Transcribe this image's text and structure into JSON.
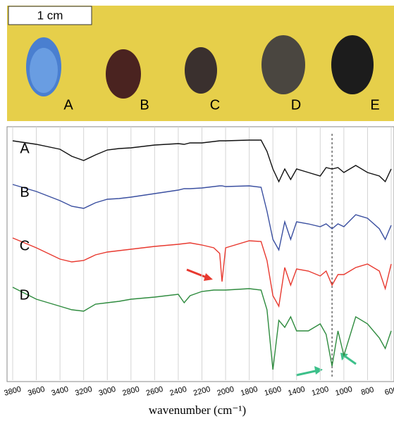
{
  "photo": {
    "scale_label": "1 cm",
    "labels": [
      "A",
      "B",
      "C",
      "D",
      "E"
    ]
  },
  "chart_data": {
    "type": "line",
    "x_label": "wavenumber (cm⁻¹)",
    "x": [
      3800,
      3600,
      3400,
      3300,
      3200,
      3100,
      3000,
      2900,
      2800,
      2600,
      2400,
      2350,
      2300,
      2200,
      2100,
      2050,
      2030,
      2000,
      1800,
      1700,
      1650,
      1600,
      1550,
      1500,
      1450,
      1400,
      1300,
      1200,
      1150,
      1100,
      1050,
      1000,
      900,
      800,
      700,
      650,
      600
    ],
    "series": [
      {
        "name": "A",
        "color": "#111111",
        "values": [
          340,
          335,
          328,
          318,
          312,
          320,
          327,
          329,
          330,
          334,
          336,
          335,
          337,
          337,
          339,
          340,
          340,
          340,
          341,
          341,
          325,
          300,
          282,
          300,
          285,
          300,
          295,
          290,
          302,
          300,
          302,
          295,
          305,
          295,
          290,
          282,
          300
        ]
      },
      {
        "name": "B",
        "color": "#3a4fa0",
        "values": [
          278,
          268,
          255,
          247,
          244,
          252,
          257,
          258,
          260,
          265,
          270,
          272,
          272,
          273,
          275,
          276,
          276,
          275,
          276,
          274,
          240,
          200,
          185,
          225,
          200,
          225,
          222,
          218,
          222,
          215,
          222,
          218,
          235,
          230,
          215,
          200,
          220
        ]
      },
      {
        "name": "C",
        "color": "#e8392f",
        "values": [
          202,
          188,
          172,
          168,
          170,
          178,
          182,
          184,
          186,
          190,
          193,
          194,
          195,
          192,
          188,
          180,
          140,
          188,
          198,
          197,
          170,
          120,
          105,
          160,
          135,
          158,
          155,
          148,
          155,
          135,
          150,
          150,
          160,
          165,
          155,
          130,
          165
        ]
      },
      {
        "name": "D",
        "color": "#2e8b3e",
        "values": [
          132,
          115,
          105,
          100,
          98,
          108,
          110,
          112,
          115,
          118,
          122,
          110,
          120,
          126,
          128,
          128,
          128,
          128,
          130,
          128,
          100,
          15,
          85,
          75,
          90,
          70,
          70,
          80,
          65,
          20,
          70,
          35,
          90,
          80,
          60,
          45,
          70
        ]
      }
    ],
    "xlim": [
      3800,
      600
    ],
    "ylim": [
      0,
      360
    ],
    "xticks": [
      3800,
      3600,
      3400,
      3200,
      3000,
      2800,
      2600,
      2400,
      2200,
      2000,
      1800,
      1600,
      1400,
      1200,
      1000,
      800,
      600
    ],
    "grid": true,
    "reference_line": 1100
  }
}
